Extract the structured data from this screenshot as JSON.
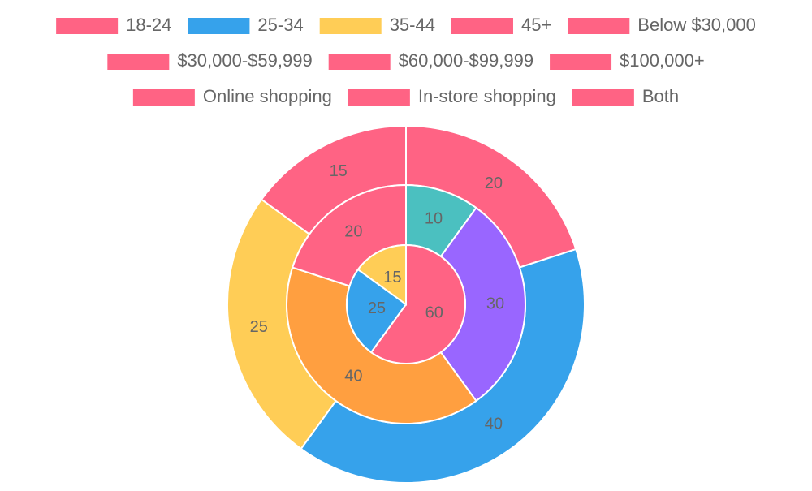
{
  "chart_data": {
    "type": "doughnut",
    "legend": [
      {
        "label": "18-24",
        "color": "#ff6384"
      },
      {
        "label": "25-34",
        "color": "#36a2eb"
      },
      {
        "label": "35-44",
        "color": "#ffcd56"
      },
      {
        "label": "45+",
        "color": "#ff6384"
      },
      {
        "label": "Below $30,000",
        "color": "#ff6384"
      },
      {
        "label": "$30,000-$59,999",
        "color": "#ff6384"
      },
      {
        "label": "$60,000-$99,999",
        "color": "#ff6384"
      },
      {
        "label": "$100,000+",
        "color": "#ff6384"
      },
      {
        "label": "Online shopping",
        "color": "#ff6384"
      },
      {
        "label": "In-store shopping",
        "color": "#ff6384"
      },
      {
        "label": "Both",
        "color": "#ff6384"
      }
    ],
    "series": [
      {
        "values": [
          20,
          40,
          25,
          15
        ],
        "colors": [
          "#ff6384",
          "#36a2eb",
          "#ffcd56",
          "#ff6384"
        ]
      },
      {
        "values": [
          10,
          30,
          40,
          20
        ],
        "colors": [
          "#4bc0c0",
          "#9966ff",
          "#ff9f40",
          "#ff6384"
        ]
      },
      {
        "values": [
          60,
          25,
          15
        ],
        "colors": [
          "#ff6384",
          "#36a2eb",
          "#ffcd56"
        ]
      }
    ]
  }
}
